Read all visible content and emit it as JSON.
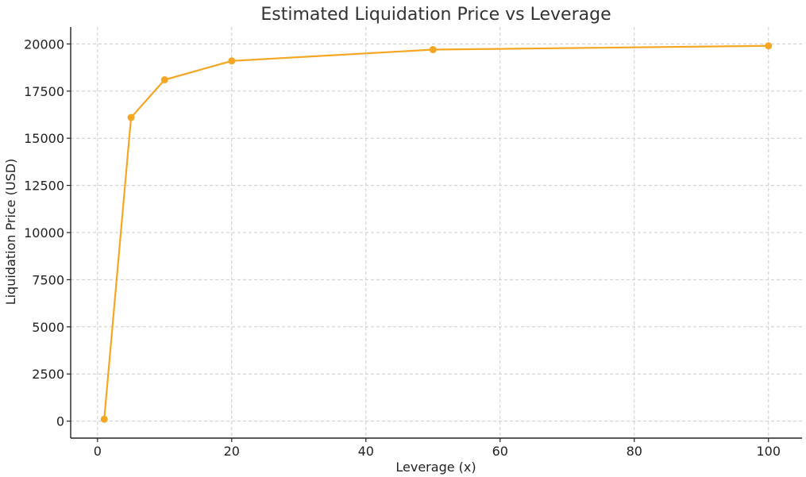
{
  "chart_data": {
    "type": "line",
    "title": "Estimated Liquidation Price vs Leverage",
    "xlabel": "Leverage (x)",
    "ylabel": "Liquidation Price (USD)",
    "xlim": [
      -4,
      105
    ],
    "ylim": [
      -900,
      20900
    ],
    "xticks": [
      0,
      20,
      40,
      60,
      80,
      100
    ],
    "yticks": [
      0,
      2500,
      5000,
      7500,
      10000,
      12500,
      15000,
      17500,
      20000
    ],
    "grid": true,
    "legend": "none",
    "series": [
      {
        "color": "#f5a623",
        "x": [
          1,
          5,
          10,
          20,
          50,
          100
        ],
        "y": [
          100,
          16100,
          18100,
          19100,
          19700,
          19900
        ]
      }
    ]
  }
}
